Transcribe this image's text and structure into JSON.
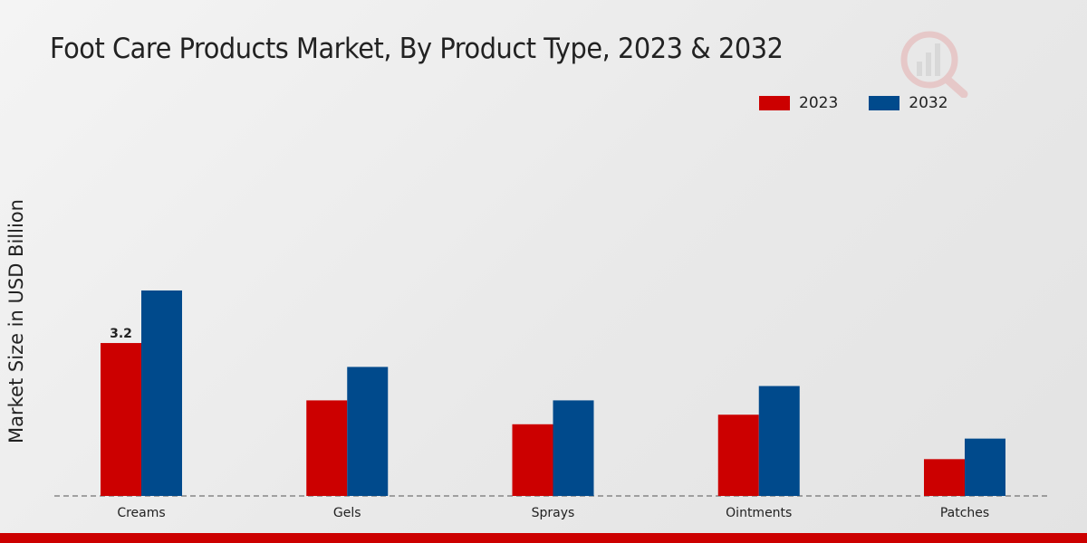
{
  "title": "Foot Care Products Market, By Product Type, 2023 & 2032",
  "chart_data": {
    "type": "bar",
    "title": "Foot Care Products Market, By Product Type, 2023 & 2032",
    "xlabel": "",
    "ylabel": "Market Size in USD Billion",
    "categories": [
      "Creams",
      "Gels",
      "Sprays",
      "Ointments",
      "Patches"
    ],
    "series": [
      {
        "name": "2023",
        "color": "#cc0000",
        "values": [
          3.2,
          2.0,
          1.5,
          1.7,
          0.77
        ]
      },
      {
        "name": "2032",
        "color": "#004a8c",
        "values": [
          4.3,
          2.7,
          2.0,
          2.3,
          1.2
        ]
      }
    ],
    "data_labels": [
      {
        "series": 0,
        "index": 0,
        "text": "3.2"
      }
    ],
    "ylim": [
      0,
      7.5
    ],
    "grid": false,
    "legend_position": "top-right"
  },
  "footer_color": "#cc0000"
}
